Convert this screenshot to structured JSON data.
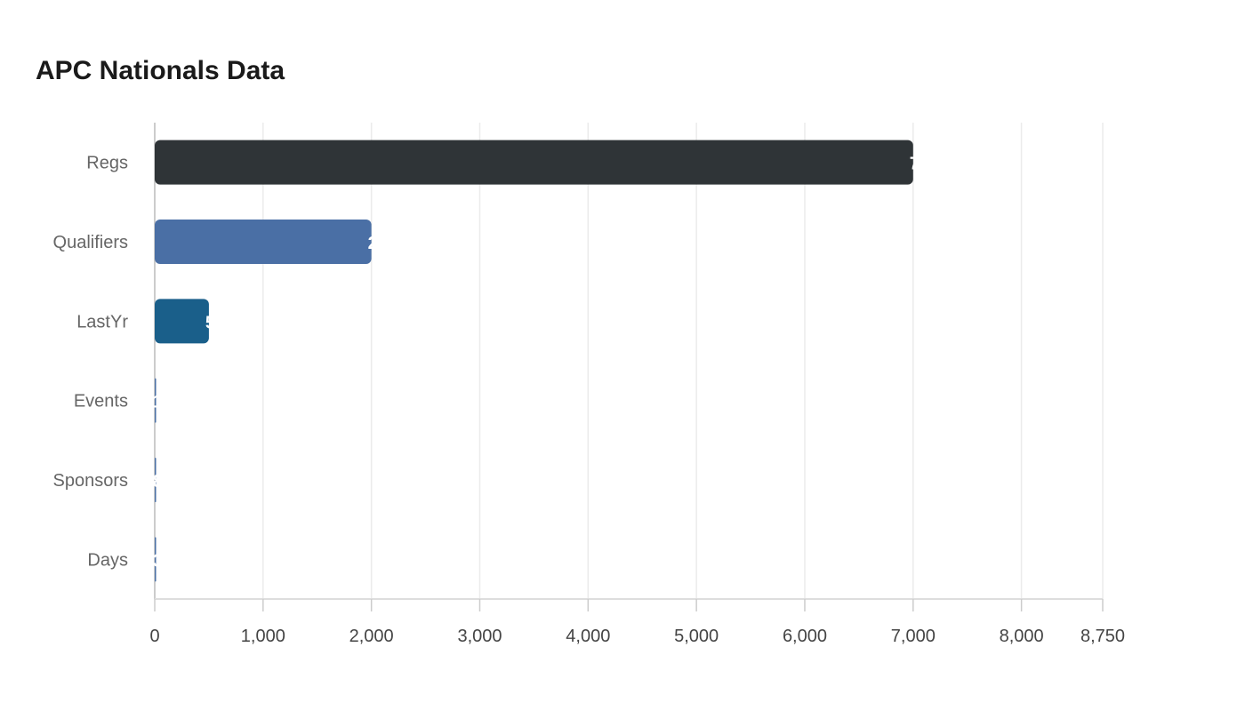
{
  "chart_data": {
    "type": "bar",
    "orientation": "horizontal",
    "title": "APC Nationals Data",
    "categories": [
      "Regs",
      "Qualifiers",
      "LastYr",
      "Events",
      "Sponsors",
      "Days"
    ],
    "values": [
      7000,
      2000,
      500,
      12,
      8,
      3
    ],
    "colors": [
      "#2f3437",
      "#4a6fa5",
      "#1a5f8a",
      "#4a6fa5",
      "#4a6fa5",
      "#4a6fa5"
    ],
    "xlim": [
      0,
      8750
    ],
    "xticks": [
      0,
      1000,
      2000,
      3000,
      4000,
      5000,
      6000,
      7000,
      8000,
      8750
    ],
    "xtick_labels": [
      "0",
      "1,000",
      "2,000",
      "3,000",
      "4,000",
      "5,000",
      "6,000",
      "7,000",
      "8,000",
      "8,750"
    ],
    "xlabel": "",
    "ylabel": "",
    "grid": "vertical",
    "legend": "none"
  }
}
